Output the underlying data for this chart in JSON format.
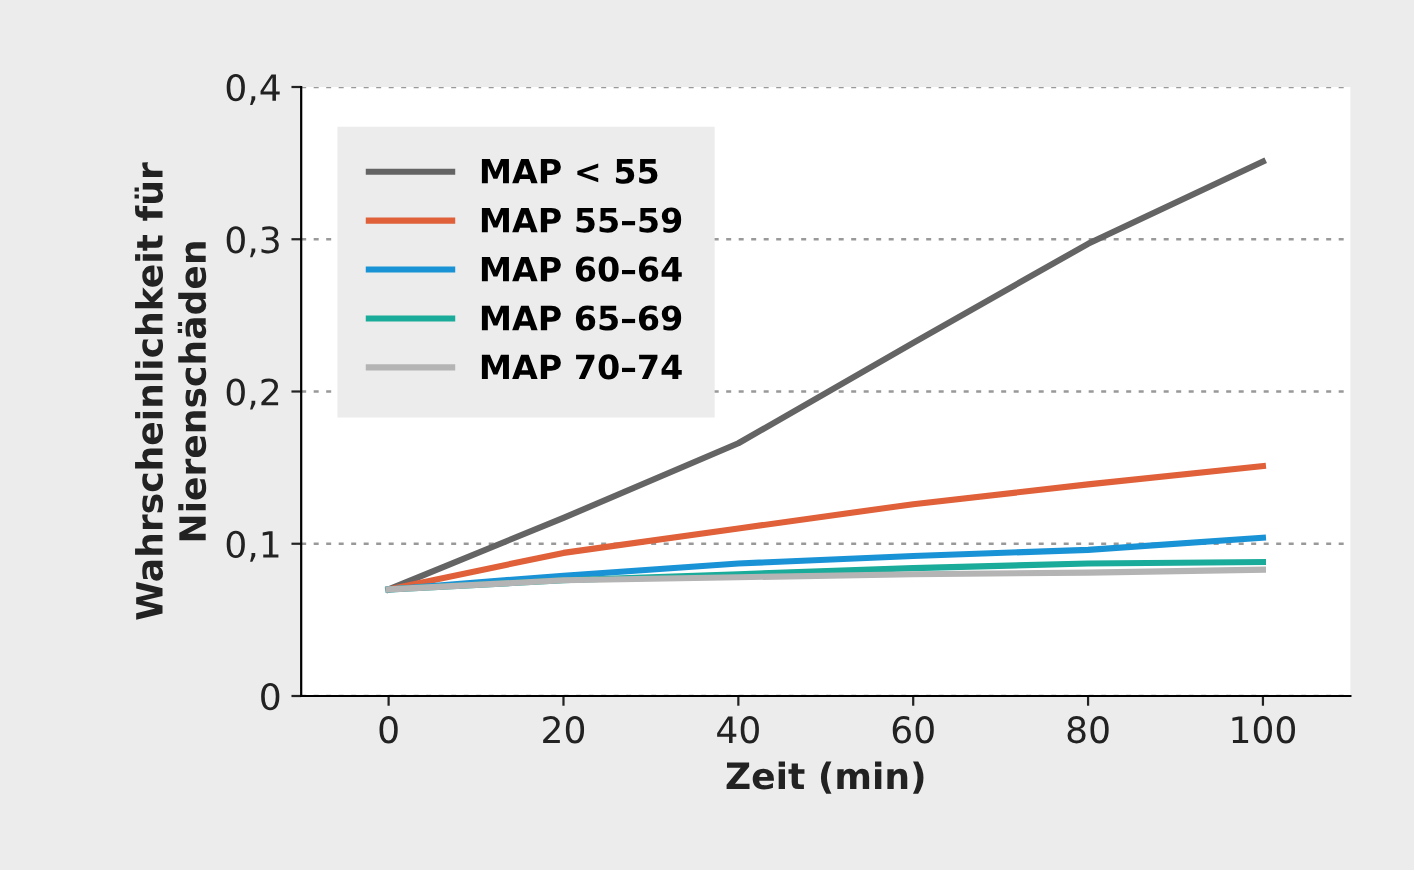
{
  "chart_data": {
    "type": "line",
    "xlabel": "Zeit (min)",
    "ylabel": "Wahrscheinlichkeit für\nNierenschäden",
    "x": [
      0,
      20,
      40,
      60,
      80,
      100
    ],
    "series": [
      {
        "name": "MAP < 55",
        "color": "#646464",
        "values": [
          0.07,
          0.117,
          0.166,
          0.232,
          0.297,
          0.351
        ]
      },
      {
        "name": "MAP 55–59",
        "color": "#e0603a",
        "values": [
          0.07,
          0.094,
          0.11,
          0.126,
          0.139,
          0.151
        ]
      },
      {
        "name": "MAP 60–64",
        "color": "#1a93d6",
        "values": [
          0.07,
          0.079,
          0.087,
          0.092,
          0.096,
          0.104
        ]
      },
      {
        "name": "MAP 65–69",
        "color": "#1aab9a",
        "values": [
          0.07,
          0.076,
          0.08,
          0.084,
          0.087,
          0.088
        ]
      },
      {
        "name": "MAP 70–74",
        "color": "#b4b4b4",
        "values": [
          0.07,
          0.076,
          0.078,
          0.08,
          0.081,
          0.083
        ]
      }
    ],
    "xlim": [
      -10,
      110
    ],
    "xticks": [
      0,
      20,
      40,
      60,
      80,
      100
    ],
    "ylim": [
      0,
      0.4
    ],
    "yticks": [
      {
        "value": 0,
        "label": "0"
      },
      {
        "value": 0.1,
        "label": "0,1"
      },
      {
        "value": 0.2,
        "label": "0,2"
      },
      {
        "value": 0.3,
        "label": "0,3"
      },
      {
        "value": 0.4,
        "label": "0,4"
      }
    ],
    "grid": "y",
    "legend": "top left",
    "marker": "none",
    "line_style": "solid"
  }
}
